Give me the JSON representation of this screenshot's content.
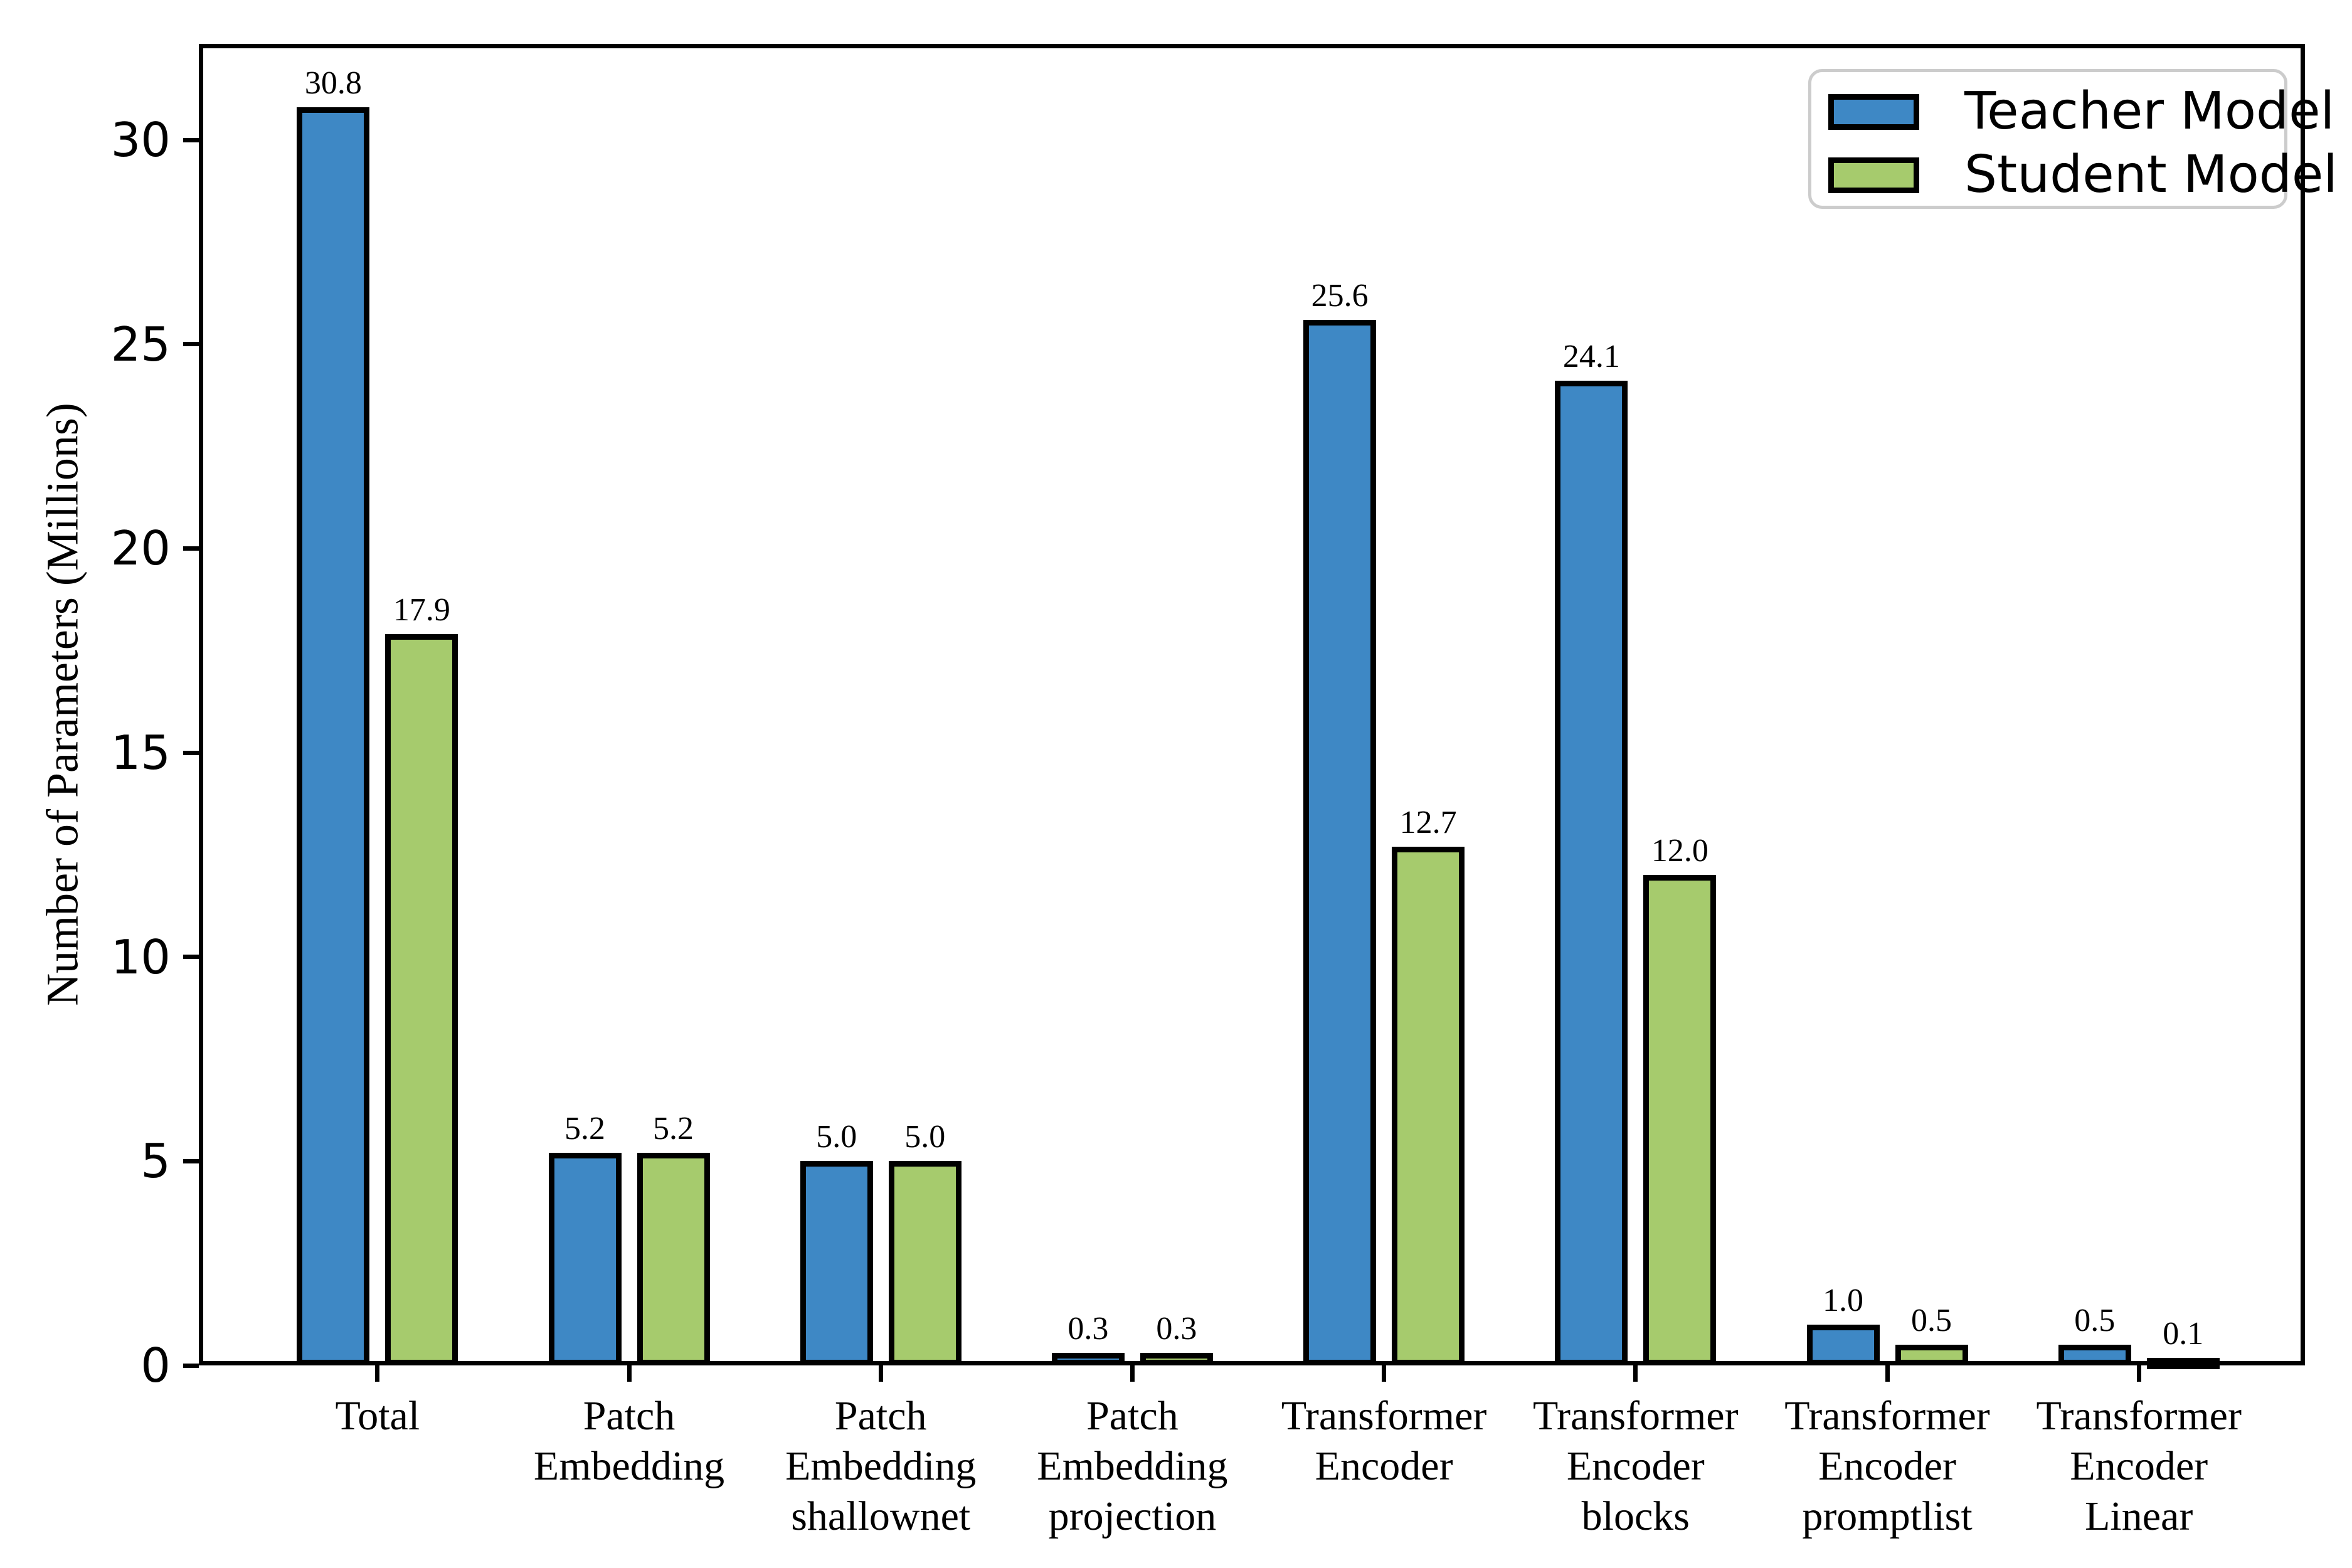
{
  "chart_data": {
    "type": "bar",
    "title": "",
    "xlabel": "",
    "ylabel": "Number of Parameters (Millions)",
    "ylim": [
      0,
      32.35
    ],
    "yticks": [
      0,
      5,
      10,
      15,
      20,
      25,
      30
    ],
    "grid": false,
    "legend_position": "upper right",
    "categories": [
      "Total",
      "Patch Embedding",
      "Patch Embedding shallownet",
      "Patch Embedding projection",
      "Transformer Encoder",
      "Transformer Encoder blocks",
      "Transformer Encoder promptlist",
      "Transformer Encoder Linear"
    ],
    "category_lines": [
      [
        "Total"
      ],
      [
        "Patch",
        "Embedding"
      ],
      [
        "Patch",
        "Embedding",
        "shallownet"
      ],
      [
        "Patch",
        "Embedding",
        "projection"
      ],
      [
        "Transformer",
        "Encoder"
      ],
      [
        "Transformer",
        "Encoder",
        "blocks"
      ],
      [
        "Transformer",
        "Encoder",
        "promptlist"
      ],
      [
        "Transformer",
        "Encoder",
        "Linear"
      ]
    ],
    "series": [
      {
        "name": "Teacher Model",
        "color": "#3e88c5",
        "values": [
          30.8,
          5.2,
          5.0,
          0.3,
          25.6,
          24.1,
          1.0,
          0.5
        ],
        "labels": [
          "30.8",
          "5.2",
          "5.0",
          "0.3",
          "25.6",
          "24.1",
          "1.0",
          "0.5"
        ]
      },
      {
        "name": "Student Model",
        "color": "#a6cb6d",
        "values": [
          17.9,
          5.2,
          5.0,
          0.3,
          12.7,
          12.0,
          0.5,
          0.1
        ],
        "labels": [
          "17.9",
          "5.2",
          "5.0",
          "0.3",
          "12.7",
          "12.0",
          "0.5",
          "0.1"
        ]
      }
    ],
    "bar_edge_color": "#000000",
    "axis_color": "#000000",
    "legend_border_color": "#cccccc"
  }
}
